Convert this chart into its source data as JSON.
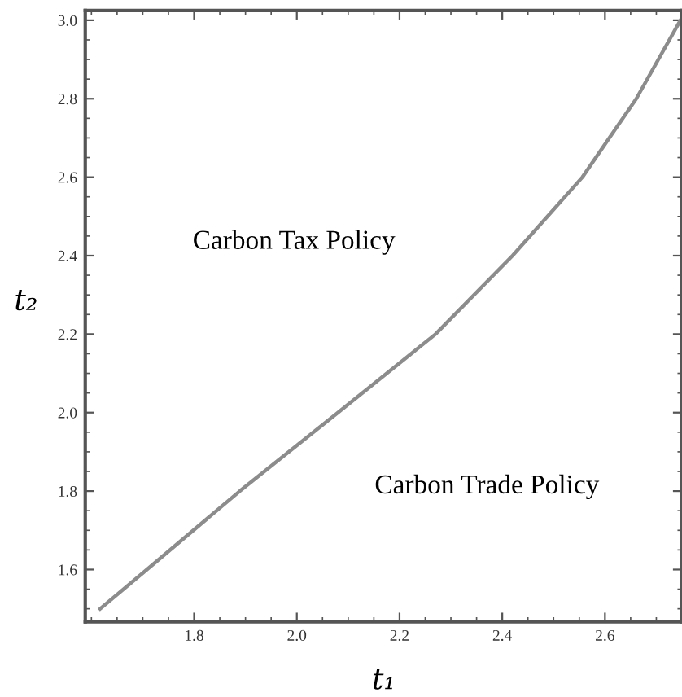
{
  "chart_data": {
    "type": "line",
    "xlabel": "t₁",
    "ylabel": "t₂",
    "series": [
      {
        "color": "#8c8c8c",
        "x": [
          1.617,
          1.708,
          1.889,
          2.08,
          2.27,
          2.42,
          2.556,
          2.661,
          2.747
        ],
        "values": [
          1.5,
          1.6,
          1.8,
          2.0,
          2.2,
          2.4,
          2.6,
          2.8,
          3.0
        ]
      }
    ],
    "xlim": [
      1.588,
      2.75
    ],
    "ylim": [
      1.467,
      3.025
    ],
    "xticks": [
      1.8,
      {
        "value": 2,
        "label": "2.0"
      },
      2.2,
      2.4,
      2.6
    ],
    "yticks": [
      1.6,
      1.8,
      {
        "value": 2,
        "label": "2.0"
      },
      2.2,
      2.4,
      2.6,
      2.8,
      {
        "value": 3,
        "label": "3.0"
      }
    ],
    "grid": false,
    "legend": false,
    "marker": "none",
    "line_style": "solid",
    "annotations": [
      "Carbon Tax Policy",
      "Carbon Trade Policy"
    ]
  }
}
